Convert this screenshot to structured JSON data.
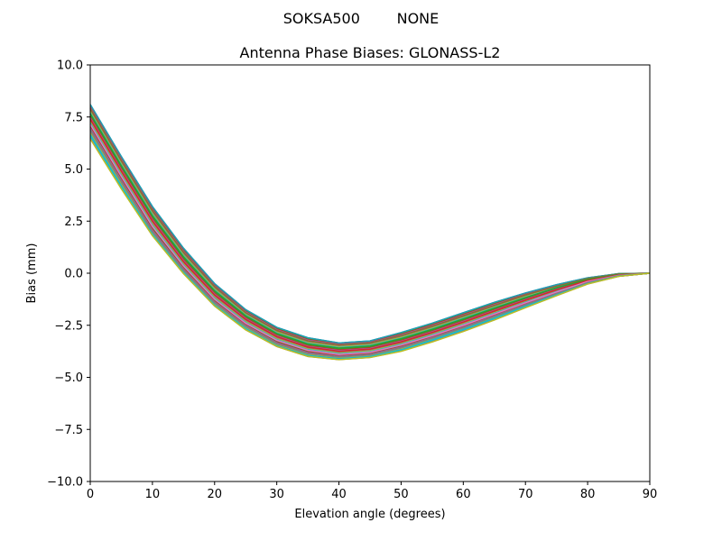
{
  "chart_data": {
    "type": "line",
    "suptitle": "SOKSA500        NONE",
    "title": "Antenna Phase Biases: GLONASS-L2",
    "xlabel": "Elevation angle (degrees)",
    "ylabel": "Bias (mm)",
    "xlim": [
      0,
      90
    ],
    "ylim": [
      -10,
      10
    ],
    "xticks": [
      0,
      10,
      20,
      30,
      40,
      50,
      60,
      70,
      80,
      90
    ],
    "yticks": [
      -10.0,
      -7.5,
      -5.0,
      -2.5,
      0.0,
      2.5,
      5.0,
      7.5,
      10.0
    ],
    "ytick_labels": [
      "−10.0",
      "−7.5",
      "−5.0",
      "−2.5",
      "0.0",
      "2.5",
      "5.0",
      "7.5",
      "10.0"
    ],
    "grid": false,
    "x": [
      0,
      5,
      10,
      15,
      20,
      25,
      30,
      35,
      40,
      45,
      50,
      55,
      60,
      65,
      70,
      75,
      80,
      85,
      90
    ],
    "series": [
      {
        "values": [
          8.1,
          5.6,
          3.2,
          1.2,
          -0.5,
          -1.75,
          -2.6,
          -3.1,
          -3.35,
          -3.25,
          -2.85,
          -2.4,
          -1.9,
          -1.4,
          -0.95,
          -0.55,
          -0.22,
          -0.02,
          0.0
        ]
      },
      {
        "values": [
          7.9,
          5.4,
          3.0,
          1.0,
          -0.65,
          -1.9,
          -2.75,
          -3.25,
          -3.45,
          -3.35,
          -3.0,
          -2.55,
          -2.05,
          -1.55,
          -1.05,
          -0.62,
          -0.26,
          -0.04,
          0.0
        ]
      },
      {
        "values": [
          7.65,
          5.15,
          2.75,
          0.78,
          -0.85,
          -2.05,
          -2.9,
          -3.4,
          -3.6,
          -3.5,
          -3.15,
          -2.7,
          -2.2,
          -1.68,
          -1.18,
          -0.7,
          -0.3,
          -0.06,
          0.0
        ]
      },
      {
        "values": [
          7.4,
          4.9,
          2.5,
          0.55,
          -1.05,
          -2.22,
          -3.05,
          -3.55,
          -3.75,
          -3.65,
          -3.3,
          -2.85,
          -2.35,
          -1.82,
          -1.3,
          -0.8,
          -0.35,
          -0.08,
          0.0
        ]
      },
      {
        "values": [
          7.15,
          4.65,
          2.25,
          0.35,
          -1.25,
          -2.4,
          -3.22,
          -3.7,
          -3.9,
          -3.8,
          -3.45,
          -3.0,
          -2.5,
          -1.96,
          -1.42,
          -0.9,
          -0.4,
          -0.1,
          0.0
        ]
      },
      {
        "values": [
          6.9,
          4.4,
          2.0,
          0.15,
          -1.42,
          -2.55,
          -3.38,
          -3.85,
          -4.02,
          -3.92,
          -3.58,
          -3.12,
          -2.62,
          -2.08,
          -1.52,
          -0.98,
          -0.45,
          -0.12,
          0.0
        ]
      },
      {
        "values": [
          6.6,
          4.15,
          1.85,
          0.02,
          -1.55,
          -2.68,
          -3.5,
          -3.97,
          -4.12,
          -4.02,
          -3.7,
          -3.22,
          -2.72,
          -2.18,
          -1.6,
          -1.04,
          -0.5,
          -0.14,
          0.0
        ]
      },
      {
        "values": [
          6.45,
          4.05,
          1.8,
          -0.02,
          -1.58,
          -2.72,
          -3.52,
          -4.0,
          -4.15,
          -4.05,
          -3.75,
          -3.3,
          -2.8,
          -2.25,
          -1.66,
          -1.08,
          -0.52,
          -0.15,
          0.0
        ]
      }
    ],
    "series_colors": [
      "#1f9fb4",
      "#8c6d31",
      "#2ca02c",
      "#d62728",
      "#e377c2",
      "#7f7f7f",
      "#17becf",
      "#bcbd22"
    ],
    "layer_colors": [
      "#1f77b4",
      "#ff7f0e",
      "#2ca02c",
      "#d62728",
      "#9467bd",
      "#8c564b",
      "#e377c2",
      "#7f7f7f",
      "#bcbd22",
      "#17becf"
    ]
  }
}
